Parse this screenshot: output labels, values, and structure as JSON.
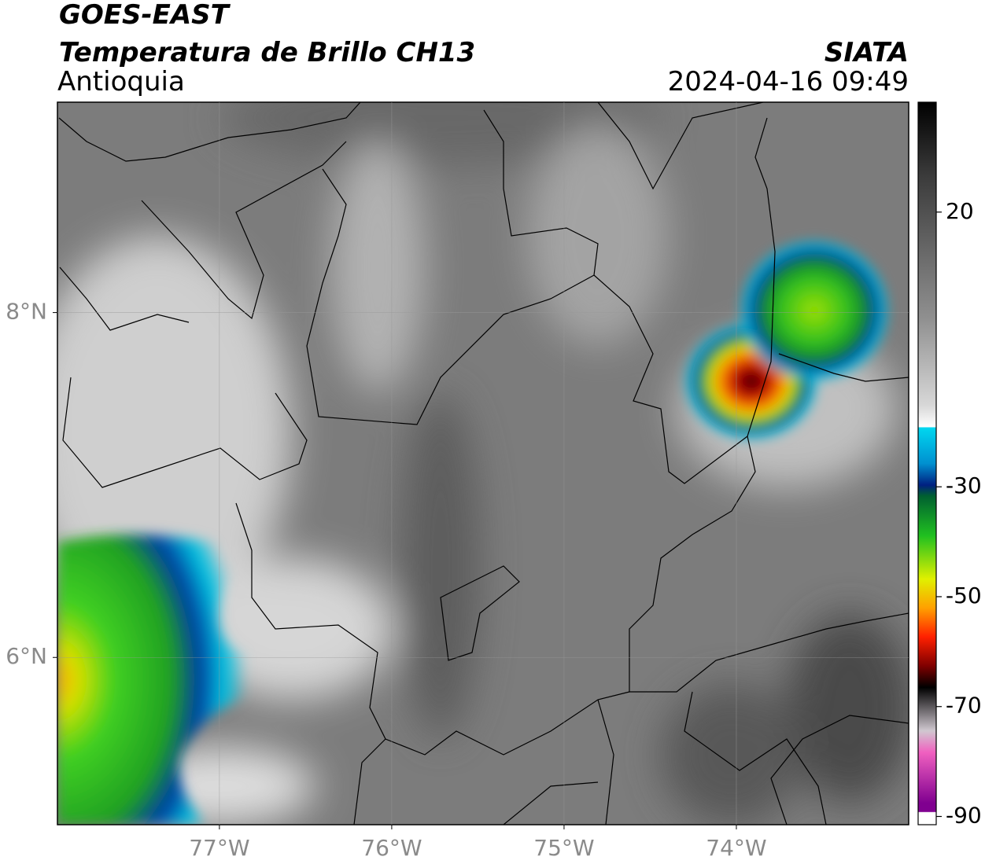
{
  "header": {
    "title": "GOES-EAST",
    "subtitle": "Temperatura de Brillo CH13",
    "region": "Antioquia",
    "source": "SIATA",
    "datetime": "2024-04-16 09:49"
  },
  "map": {
    "xlim": [
      -77.94,
      -73.0
    ],
    "ylim": [
      5.03,
      9.22
    ],
    "xticks": [
      {
        "value": -77,
        "label": "77°W"
      },
      {
        "value": -76,
        "label": "76°W"
      },
      {
        "value": -75,
        "label": "75°W"
      },
      {
        "value": -74,
        "label": "74°W"
      }
    ],
    "yticks": [
      {
        "value": 8,
        "label": "8°N"
      },
      {
        "value": 6,
        "label": "6°N"
      }
    ],
    "grid": true
  },
  "colorbar": {
    "clim": [
      -91.5,
      40
    ],
    "ticks": [
      20,
      -30,
      -50,
      -70,
      -90
    ]
  }
}
